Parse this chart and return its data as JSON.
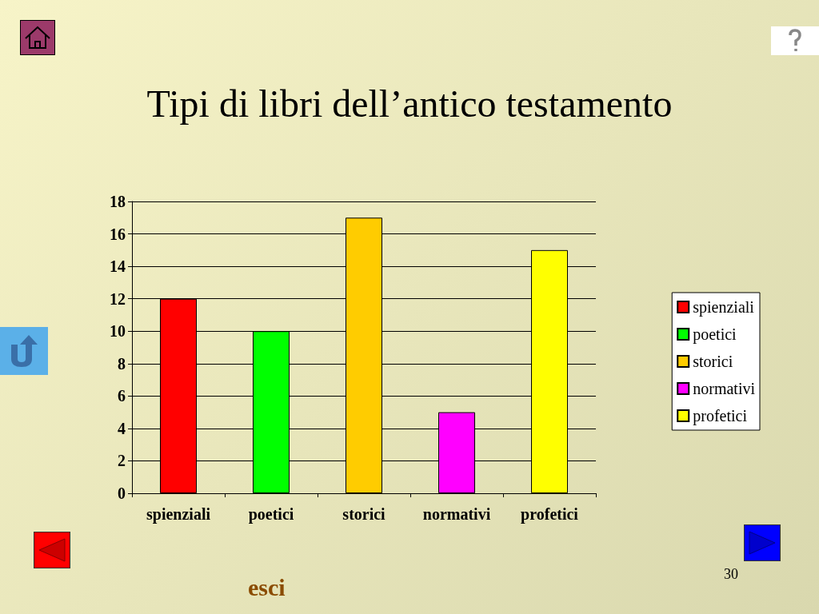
{
  "chart_data": {
    "type": "bar",
    "title": "Tipi di libri dell’antico testamento",
    "categories": [
      "spienziali",
      "poetici",
      "storici",
      "normativi",
      "profetici"
    ],
    "series": [
      {
        "name": "spienziali",
        "color": "#ff0000",
        "values": [
          12,
          null,
          null,
          null,
          null
        ]
      },
      {
        "name": "poetici",
        "color": "#00ff00",
        "values": [
          null,
          10,
          null,
          null,
          null
        ]
      },
      {
        "name": "storici",
        "color": "#ffcc00",
        "values": [
          null,
          null,
          17,
          null,
          null
        ]
      },
      {
        "name": "normativi",
        "color": "#ff00ff",
        "values": [
          null,
          null,
          null,
          5,
          null
        ]
      },
      {
        "name": "profetici",
        "color": "#ffff00",
        "values": [
          null,
          null,
          null,
          null,
          15
        ]
      }
    ],
    "ylim": [
      0,
      18
    ],
    "yticks": [
      0,
      2,
      4,
      6,
      8,
      10,
      12,
      14,
      16,
      18
    ],
    "grid": "y",
    "legend": "right",
    "annotations": [
      "30",
      "esci"
    ]
  }
}
